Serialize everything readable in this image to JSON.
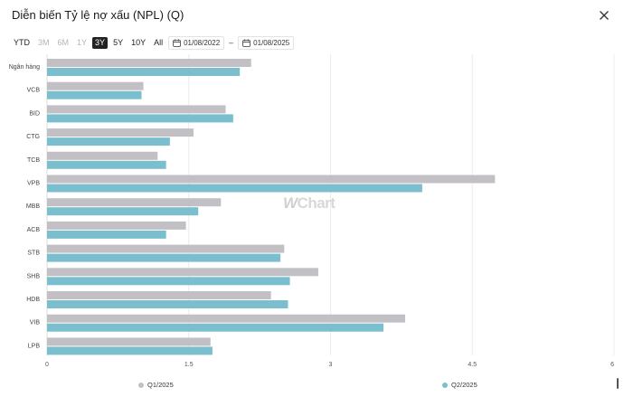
{
  "modal": {
    "title": "Diễn biến Tỷ lệ nợ xấu (NPL) (Q)",
    "close_icon": "close-icon"
  },
  "toolbar": {
    "ranges": [
      {
        "label": "YTD",
        "state": "normal"
      },
      {
        "label": "3M",
        "state": "disabled"
      },
      {
        "label": "6M",
        "state": "disabled"
      },
      {
        "label": "1Y",
        "state": "disabled"
      },
      {
        "label": "3Y",
        "state": "active"
      },
      {
        "label": "5Y",
        "state": "normal"
      },
      {
        "label": "10Y",
        "state": "normal"
      },
      {
        "label": "All",
        "state": "normal"
      }
    ],
    "date_from": "01/08/2022",
    "date_to": "01/08/2025",
    "separator": "–"
  },
  "watermark": {
    "mark": "W",
    "text": "Chart"
  },
  "chart_data": {
    "type": "bar",
    "orientation": "horizontal",
    "title": "Diễn biến Tỷ lệ nợ xấu (NPL) (Q)",
    "xlabel": "",
    "ylabel": "",
    "xlim": [
      0,
      6
    ],
    "x_ticks": [
      "0",
      "1.5",
      "3",
      "4.5",
      "6"
    ],
    "x_tick_values": [
      0,
      1.5,
      3,
      4.5,
      6
    ],
    "grid": true,
    "legend_position": "bottom",
    "categories": [
      "Ngân hàng",
      "VCB",
      "BID",
      "CTG",
      "TCB",
      "VPB",
      "MBB",
      "ACB",
      "STB",
      "SHB",
      "HDB",
      "VIB",
      "LPB"
    ],
    "series": [
      {
        "name": "Q1/2025",
        "color": "#c2c0c4",
        "values": [
          2.16,
          1.02,
          1.89,
          1.55,
          1.17,
          4.74,
          1.84,
          1.47,
          2.51,
          2.87,
          2.37,
          3.79,
          1.73
        ]
      },
      {
        "name": "Q2/2025",
        "color": "#7bbfcf",
        "values": [
          2.04,
          1.0,
          1.97,
          1.3,
          1.26,
          3.97,
          1.6,
          1.26,
          2.47,
          2.57,
          2.55,
          3.56,
          1.75
        ]
      }
    ]
  }
}
